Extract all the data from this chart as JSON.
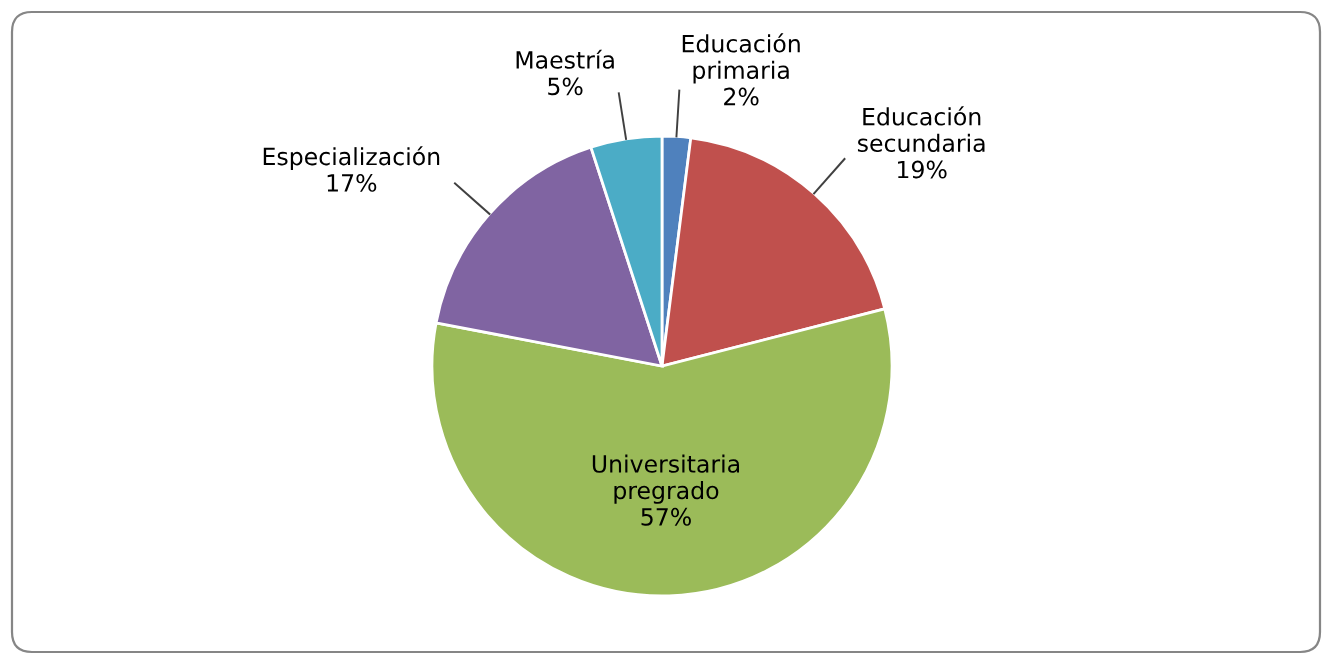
{
  "chart_data": {
    "type": "pie",
    "categories": [
      "Educación\nprimaria",
      "Educación\nsecundaria",
      "Universitaria\npregrado",
      "Especialización",
      "Maestría"
    ],
    "values": [
      2,
      19,
      57,
      17,
      5
    ],
    "colors": [
      "#4f81bd",
      "#c0504d",
      "#9bbb59",
      "#8064a2",
      "#4bacc6"
    ],
    "value_labels": [
      "2%",
      "19%",
      "57%",
      "17%",
      "5%"
    ],
    "legend": false
  }
}
